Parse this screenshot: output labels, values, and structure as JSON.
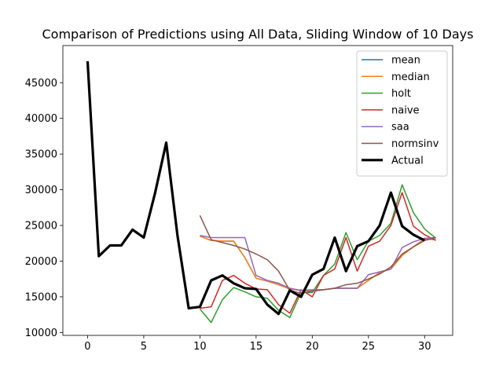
{
  "chart_data": {
    "type": "line",
    "title": "Comparison of Predictions using All Data, Sliding Window of 10 Days",
    "xlabel": "",
    "ylabel": "",
    "xlim": [
      -2.2,
      32.5
    ],
    "ylim": [
      9600,
      50200
    ],
    "xticks": [
      0,
      5,
      10,
      15,
      20,
      25,
      30
    ],
    "yticks": [
      10000,
      15000,
      20000,
      25000,
      30000,
      35000,
      40000,
      45000
    ],
    "grid": false,
    "legend_position": "top-right",
    "series": [
      {
        "name": "mean",
        "color": "#1f77b4",
        "width": 1.5,
        "x": [
          10,
          11,
          12,
          13,
          14,
          15,
          16,
          17,
          18,
          19,
          20,
          21,
          22,
          23,
          24,
          25,
          26,
          27,
          28,
          29,
          30,
          31
        ],
        "y": [
          23500,
          22900,
          22800,
          22800,
          20500,
          17600,
          17200,
          16700,
          16100,
          15900,
          15800,
          16000,
          16200,
          16200,
          16200,
          17300,
          18400,
          18900,
          20800,
          22000,
          23100,
          23000
        ]
      },
      {
        "name": "median",
        "color": "#ff7f0e",
        "width": 1.5,
        "x": [
          10,
          11,
          12,
          13,
          14,
          15,
          16,
          17,
          18,
          19,
          20,
          21,
          22,
          23,
          24,
          25,
          26,
          27,
          28,
          29,
          30,
          31
        ],
        "y": [
          23500,
          22900,
          22800,
          22800,
          20500,
          17600,
          17200,
          16700,
          16100,
          15900,
          15800,
          16000,
          16200,
          16200,
          16200,
          17300,
          18400,
          18900,
          20800,
          22000,
          23100,
          23000
        ]
      },
      {
        "name": "holt",
        "color": "#2ca02c",
        "width": 1.5,
        "x": [
          10,
          11,
          12,
          13,
          14,
          15,
          16,
          17,
          18,
          19,
          20,
          21,
          22,
          23,
          24,
          25,
          26,
          27,
          28,
          29,
          30,
          31
        ],
        "y": [
          13300,
          11400,
          14600,
          16300,
          15700,
          15000,
          14800,
          13100,
          12100,
          15600,
          15600,
          18000,
          19600,
          24000,
          20200,
          22800,
          23600,
          25300,
          30700,
          26800,
          24500,
          23200
        ]
      },
      {
        "name": "naive",
        "color": "#d62728",
        "width": 1.5,
        "x": [
          10,
          11,
          12,
          13,
          14,
          15,
          16,
          17,
          18,
          19,
          20,
          21,
          22,
          23,
          24,
          25,
          26,
          27,
          28,
          29,
          30,
          31
        ],
        "y": [
          13400,
          13600,
          17300,
          18000,
          16900,
          16100,
          16000,
          13900,
          12700,
          16000,
          15000,
          18000,
          18900,
          23300,
          18600,
          22100,
          22800,
          25000,
          29600,
          24900,
          23700,
          22900
        ]
      },
      {
        "name": "saa",
        "color": "#9467bd",
        "width": 1.5,
        "x": [
          10,
          11,
          12,
          13,
          14,
          15,
          16,
          17,
          18,
          19,
          20,
          21,
          22,
          23,
          24,
          25,
          26,
          27,
          28,
          29,
          30,
          31
        ],
        "y": [
          23600,
          23300,
          23300,
          23300,
          23300,
          18000,
          17300,
          16900,
          16200,
          15900,
          16000,
          16000,
          16200,
          16200,
          16200,
          18100,
          18500,
          18900,
          21900,
          22700,
          23200,
          23300
        ]
      },
      {
        "name": "normsinv",
        "color": "#8c564b",
        "width": 1.5,
        "x": [
          10,
          11,
          12,
          13,
          14,
          15,
          16,
          17,
          18,
          19,
          20,
          21,
          22,
          23,
          24,
          25,
          26,
          27,
          28,
          29,
          30,
          31
        ],
        "y": [
          26400,
          23000,
          22600,
          22200,
          21700,
          21000,
          20200,
          18600,
          15900,
          15500,
          15800,
          16000,
          16200,
          16700,
          16900,
          17500,
          18200,
          19200,
          21000,
          22000,
          22900,
          23300
        ]
      },
      {
        "name": "Actual",
        "color": "#000000",
        "width": 3.2,
        "x": [
          0,
          1,
          2,
          3,
          4,
          5,
          6,
          7,
          8,
          9,
          10,
          11,
          12,
          13,
          14,
          15,
          16,
          17,
          18,
          19,
          20,
          21,
          22,
          23,
          24,
          25,
          26,
          27,
          28,
          29,
          30
        ],
        "y": [
          48000,
          20700,
          22200,
          22200,
          24400,
          23300,
          29500,
          36600,
          23600,
          13400,
          13600,
          17300,
          18000,
          16900,
          16200,
          16100,
          13900,
          12600,
          15900,
          15000,
          18100,
          18900,
          23300,
          18600,
          22100,
          22800,
          25000,
          29600,
          24900,
          23700,
          22900
        ]
      }
    ]
  }
}
